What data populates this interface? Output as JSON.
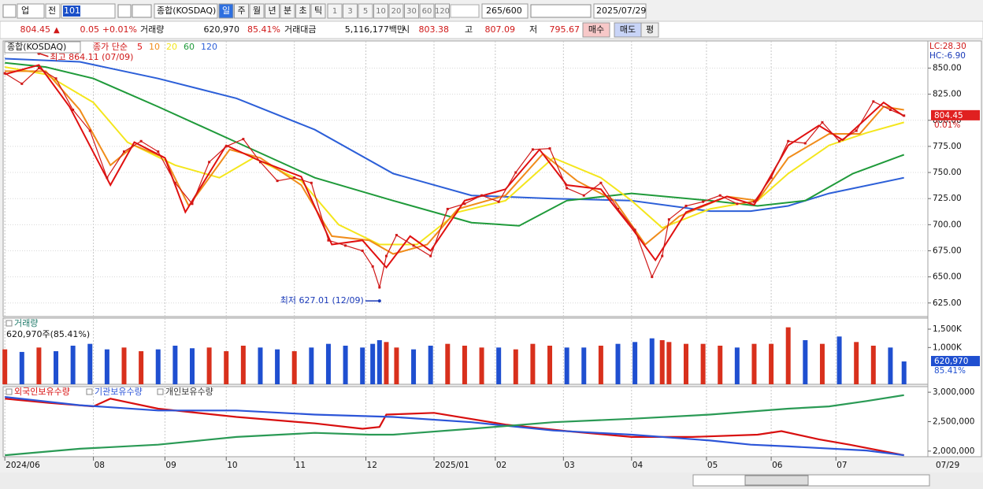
{
  "toolbar": {
    "market": "업",
    "prefix": "전",
    "code": "101",
    "name": "종합(KOSDAQ)",
    "periods": [
      "일",
      "주",
      "월",
      "년",
      "분",
      "초",
      "틱"
    ],
    "intervals": [
      "1",
      "3",
      "5",
      "10",
      "20",
      "30",
      "60",
      "120"
    ],
    "count": "265",
    "max_count": "/600",
    "date": "2025/07/29"
  },
  "quote": {
    "price": "804.45",
    "sign": "▲",
    "change": "0.05",
    "change_pct": "+0.01%",
    "volume_label": "거래량",
    "volume": "620,970",
    "volume_pct": "85.41%",
    "amount_label": "거래대금",
    "amount": "5,116,177백만",
    "open_label": "시",
    "open": "803.38",
    "high_label": "고",
    "high": "807.09",
    "low_label": "저",
    "low": "795.67",
    "buy": "매수",
    "sell": "매도",
    "avg": "평"
  },
  "chart_data": [
    {
      "type": "line",
      "title": "종합(KOSDAQ)",
      "legend_label": "종가 단순",
      "lc": "LC:28.30",
      "hc": "HC:-6.90",
      "x": [
        0,
        5,
        10,
        15,
        20,
        25,
        30,
        35,
        40,
        45,
        50,
        55,
        60,
        65,
        70,
        75,
        80,
        85,
        90,
        95,
        100,
        105,
        108,
        110,
        112,
        115,
        120,
        125,
        130,
        135,
        140,
        145,
        150,
        155,
        160,
        165,
        170,
        175,
        180,
        185,
        190,
        193,
        195,
        200,
        205,
        210,
        215,
        220,
        225,
        230,
        235,
        240,
        245,
        250,
        255,
        260,
        264
      ],
      "series": [
        {
          "color": "#d01818",
          "values": [
            845,
            835,
            850,
            840,
            810,
            790,
            745,
            770,
            780,
            770,
            740,
            720,
            760,
            775,
            782,
            760,
            742,
            745,
            740,
            685,
            680,
            675,
            660,
            640,
            670,
            690,
            680,
            670,
            715,
            720,
            728,
            722,
            750,
            772,
            773,
            735,
            728,
            740,
            715,
            695,
            650,
            670,
            705,
            718,
            722,
            728,
            720,
            722,
            745,
            780,
            778,
            798,
            780,
            790,
            818,
            810,
            804.45
          ]
        }
      ],
      "moving_averages": [
        {
          "name": "5",
          "color": "#e01010",
          "x": [
            0,
            10,
            19,
            31,
            38,
            47,
            53,
            65,
            75,
            87,
            96,
            105,
            112,
            119,
            125,
            135,
            147,
            157,
            165,
            175,
            184,
            191,
            200,
            212,
            220,
            230,
            239,
            246,
            258,
            264
          ],
          "values": [
            844,
            853,
            813,
            738,
            779,
            764,
            712,
            776,
            761,
            746,
            681,
            685,
            659,
            689,
            675,
            723,
            734,
            772,
            738,
            734,
            697,
            666,
            712,
            727,
            719,
            776,
            795,
            781,
            817,
            804
          ]
        },
        {
          "name": "10",
          "color": "#f08c1a",
          "x": [
            0,
            12,
            22,
            31,
            38,
            47,
            54,
            66,
            75,
            87,
            96,
            107,
            114,
            124,
            133,
            147,
            158,
            168,
            179,
            188,
            198,
            212,
            221,
            230,
            242,
            251,
            258,
            264
          ],
          "values": [
            847,
            847,
            810,
            757,
            776,
            764,
            718,
            772,
            764,
            738,
            689,
            685,
            672,
            681,
            715,
            728,
            768,
            742,
            723,
            681,
            708,
            727,
            723,
            764,
            787,
            787,
            813,
            810
          ]
        },
        {
          "name": "20",
          "color": "#f4e61c",
          "x": [
            0,
            12,
            26,
            36,
            50,
            63,
            73,
            87,
            98,
            110,
            121,
            133,
            147,
            161,
            175,
            184,
            193,
            207,
            221,
            230,
            242,
            253,
            264
          ],
          "values": [
            851,
            844,
            817,
            779,
            757,
            745,
            764,
            742,
            700,
            681,
            681,
            712,
            723,
            764,
            745,
            723,
            697,
            715,
            723,
            749,
            776,
            788,
            798
          ]
        },
        {
          "name": "60",
          "color": "#1f9a3a",
          "x": [
            0,
            12,
            26,
            45,
            68,
            91,
            114,
            137,
            151,
            165,
            184,
            207,
            221,
            235,
            249,
            264
          ],
          "values": [
            855,
            851,
            840,
            813,
            779,
            745,
            723,
            702,
            699,
            723,
            730,
            723,
            718,
            723,
            749,
            767
          ]
        },
        {
          "name": "120",
          "color": "#2c5fd8",
          "x": [
            0,
            22,
            45,
            68,
            91,
            114,
            137,
            161,
            184,
            207,
            219,
            230,
            242,
            264
          ],
          "values": [
            859,
            856,
            840,
            821,
            791,
            749,
            728,
            725,
            723,
            713,
            713,
            718,
            730,
            745
          ]
        }
      ],
      "annotations": [
        {
          "text": "최고 864.11 (07/09)",
          "x": 10,
          "value": 864.11,
          "color": "#d01818"
        },
        {
          "text": "최저 627.01 (12/09)",
          "x": 110,
          "value": 627.01,
          "color": "#1a3ab8"
        }
      ],
      "last_value": 804.45,
      "last_label": "804.45",
      "last_change": "0.01%",
      "xlim": [
        -0.5,
        271
      ],
      "xticks": [
        {
          "value": 0,
          "label": "2024/06"
        },
        {
          "value": 26,
          "label": "08"
        },
        {
          "value": 47,
          "label": "09"
        },
        {
          "value": 65,
          "label": "10"
        },
        {
          "value": 85,
          "label": "11"
        },
        {
          "value": 106,
          "label": "12"
        },
        {
          "value": 126,
          "label": "2025/01"
        },
        {
          "value": 144,
          "label": "02"
        },
        {
          "value": 164,
          "label": "03"
        },
        {
          "value": 184,
          "label": "04"
        },
        {
          "value": 206,
          "label": "05"
        },
        {
          "value": 225,
          "label": "06"
        },
        {
          "value": 244,
          "label": "07"
        }
      ],
      "end_label": "07/29",
      "ylim": [
        612,
        876
      ],
      "yticks": [
        {
          "value": 625,
          "label": "625.00"
        },
        {
          "value": 650,
          "label": "650.00"
        },
        {
          "value": 675,
          "label": "675.00"
        },
        {
          "value": 700,
          "label": "700.00"
        },
        {
          "value": 725,
          "label": "725.00"
        },
        {
          "value": 750,
          "label": "750.00"
        },
        {
          "value": 775,
          "label": "775.00"
        },
        {
          "value": 800,
          "label": "800.00"
        },
        {
          "value": 825,
          "label": "825.00"
        },
        {
          "value": 850,
          "label": "850.00"
        }
      ],
      "grid": true
    },
    {
      "type": "bar",
      "title": "거래량",
      "subtitle": "620,970주(85.41%)",
      "up_color": "#d8301c",
      "down_color": "#1f4fd0",
      "values": [
        950,
        880,
        1000,
        900,
        1050,
        1100,
        950,
        1000,
        900,
        950,
        1050,
        980,
        1000,
        900,
        1050,
        1000,
        950,
        900,
        1000,
        1100,
        1050,
        1000,
        1100,
        1200,
        1150,
        1000,
        950,
        1050,
        1100,
        1050,
        1000,
        1000,
        950,
        1100,
        1050,
        1000,
        1000,
        1050,
        1100,
        1150,
        1250,
        1200,
        1150,
        1100,
        1100,
        1050,
        1000,
        1100,
        1100,
        1550,
        1200,
        1100,
        1300,
        1150,
        1050,
        1000,
        620.97
      ],
      "last_value": 620.97,
      "last_label": "620,970",
      "last_pct": "85.41%",
      "ylim": [
        0,
        1800
      ],
      "yticks": [
        {
          "value": 1000,
          "label": "1,000K"
        },
        {
          "value": 1500,
          "label": "1,500K"
        }
      ]
    },
    {
      "type": "line",
      "series": [
        {
          "name": "외국인보유수량",
          "color": "#d80f0f",
          "x": [
            0,
            13,
            26,
            31,
            45,
            68,
            91,
            105,
            110,
            112,
            126,
            147,
            165,
            184,
            202,
            221,
            228,
            239,
            248,
            264
          ],
          "values": [
            2890000,
            2820000,
            2760000,
            2890000,
            2720000,
            2580000,
            2470000,
            2380000,
            2410000,
            2620000,
            2650000,
            2450000,
            2340000,
            2240000,
            2240000,
            2280000,
            2340000,
            2200000,
            2110000,
            1930000
          ]
        },
        {
          "name": "기관보유수량",
          "color": "#2c55d8",
          "x": [
            0,
            22,
            45,
            68,
            91,
            114,
            137,
            161,
            184,
            207,
            219,
            230,
            253,
            264
          ],
          "values": [
            2920000,
            2780000,
            2690000,
            2690000,
            2620000,
            2580000,
            2490000,
            2350000,
            2280000,
            2180000,
            2110000,
            2080000,
            2010000,
            1930000
          ]
        },
        {
          "name": "개인보유수량",
          "color": "#2a9a55",
          "x": [
            0,
            22,
            45,
            68,
            91,
            107,
            114,
            137,
            161,
            184,
            207,
            230,
            242,
            253,
            264
          ],
          "values": [
            1930000,
            2040000,
            2110000,
            2240000,
            2310000,
            2280000,
            2280000,
            2380000,
            2490000,
            2550000,
            2620000,
            2720000,
            2760000,
            2850000,
            2950000
          ]
        }
      ],
      "ylim": [
        1905000,
        3095000
      ],
      "yticks": [
        {
          "value": 2000000,
          "label": "2,000,000"
        },
        {
          "value": 2500000,
          "label": "2,500,000"
        },
        {
          "value": 3000000,
          "label": "3,000,000"
        }
      ]
    }
  ]
}
